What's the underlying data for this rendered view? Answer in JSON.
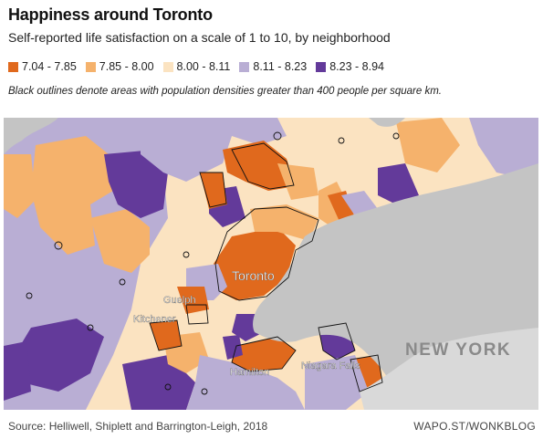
{
  "header": {
    "title": "Happiness around Toronto",
    "subtitle": "Self-reported life satisfaction on a scale of 1 to 10, by neighborhood",
    "note": "Black outlines denote areas with population densities greater than 400 people per square km."
  },
  "legend": [
    {
      "label": "7.04 - 7.85",
      "color": "#e0691d"
    },
    {
      "label": "7.85 - 8.00",
      "color": "#f5b26c"
    },
    {
      "label": "8.00 - 8.11",
      "color": "#fbe3c1"
    },
    {
      "label": "8.11 - 8.23",
      "color": "#b9aed4"
    },
    {
      "label": "8.23 - 8.94",
      "color": "#633a9a"
    }
  ],
  "map": {
    "labels": {
      "toronto": "Toronto",
      "guelph": "Guelph",
      "kitchener": "Kitchener",
      "hamilton": "Hamilton",
      "niagara_falls": "Niagara Falls",
      "new_york": "NEW YORK"
    },
    "water_color": "#c4c4c4",
    "outline_color": "#111111"
  },
  "footer": {
    "source": "Source: Helliwell, Shiplett and Barrington-Leigh, 2018",
    "credit": "WAPO.ST/WONKBLOG"
  }
}
